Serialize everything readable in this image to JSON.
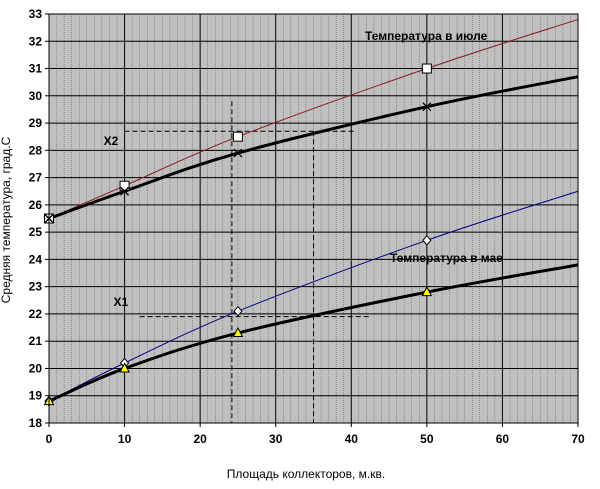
{
  "chart_data": {
    "type": "line",
    "xlabel": "Площадь коллекторов, м.кв.",
    "ylabel": "Средняя температура, град.С",
    "xlim": [
      0,
      70
    ],
    "ylim": [
      18,
      33
    ],
    "x_ticks": [
      "0",
      "10",
      "20",
      "30",
      "40",
      "50",
      "60",
      "70"
    ],
    "y_ticks": [
      "18",
      "19",
      "20",
      "21",
      "22",
      "23",
      "24",
      "25",
      "26",
      "27",
      "28",
      "29",
      "30",
      "31",
      "32",
      "33"
    ],
    "grid": true,
    "background_color": "#c0c0c0",
    "series": [
      {
        "name": "Температура в июле",
        "color": "#8b1a1a",
        "line_width": 1,
        "marker": "square",
        "x": [
          0,
          10,
          25,
          50,
          70
        ],
        "y": [
          25.5,
          26.7,
          28.5,
          31.0,
          32.8
        ]
      },
      {
        "color": "#000000",
        "line_width": 3,
        "marker": "x",
        "x": [
          0,
          10,
          25,
          50,
          70
        ],
        "y": [
          25.5,
          26.5,
          27.9,
          29.6,
          30.7
        ]
      },
      {
        "name": "Температура в мае",
        "color": "#000080",
        "line_width": 1,
        "marker": "diamond",
        "x": [
          0,
          10,
          25,
          50,
          70
        ],
        "y": [
          18.8,
          20.2,
          22.1,
          24.7,
          26.5
        ]
      },
      {
        "color": "#000000",
        "line_width": 3,
        "marker": "triangle",
        "marker_color": "#ffff00",
        "x": [
          0,
          10,
          25,
          50,
          70
        ],
        "y": [
          18.8,
          20.0,
          21.3,
          22.8,
          23.8
        ]
      }
    ],
    "annotations": [
      {
        "text": "X2",
        "x": 8.2,
        "y": 28.2
      },
      {
        "text": "X1",
        "x": 9.5,
        "y": 22.3
      }
    ],
    "reference_lines": [
      {
        "from": [
          10,
          28.7
        ],
        "to": [
          40.5,
          28.7
        ]
      },
      {
        "from": [
          12,
          21.9
        ],
        "to": [
          42.5,
          21.9
        ]
      },
      {
        "from": [
          24.2,
          29.8
        ],
        "to": [
          24.2,
          18
        ]
      },
      {
        "from": [
          35,
          28.7
        ],
        "to": [
          35,
          18
        ]
      }
    ]
  }
}
